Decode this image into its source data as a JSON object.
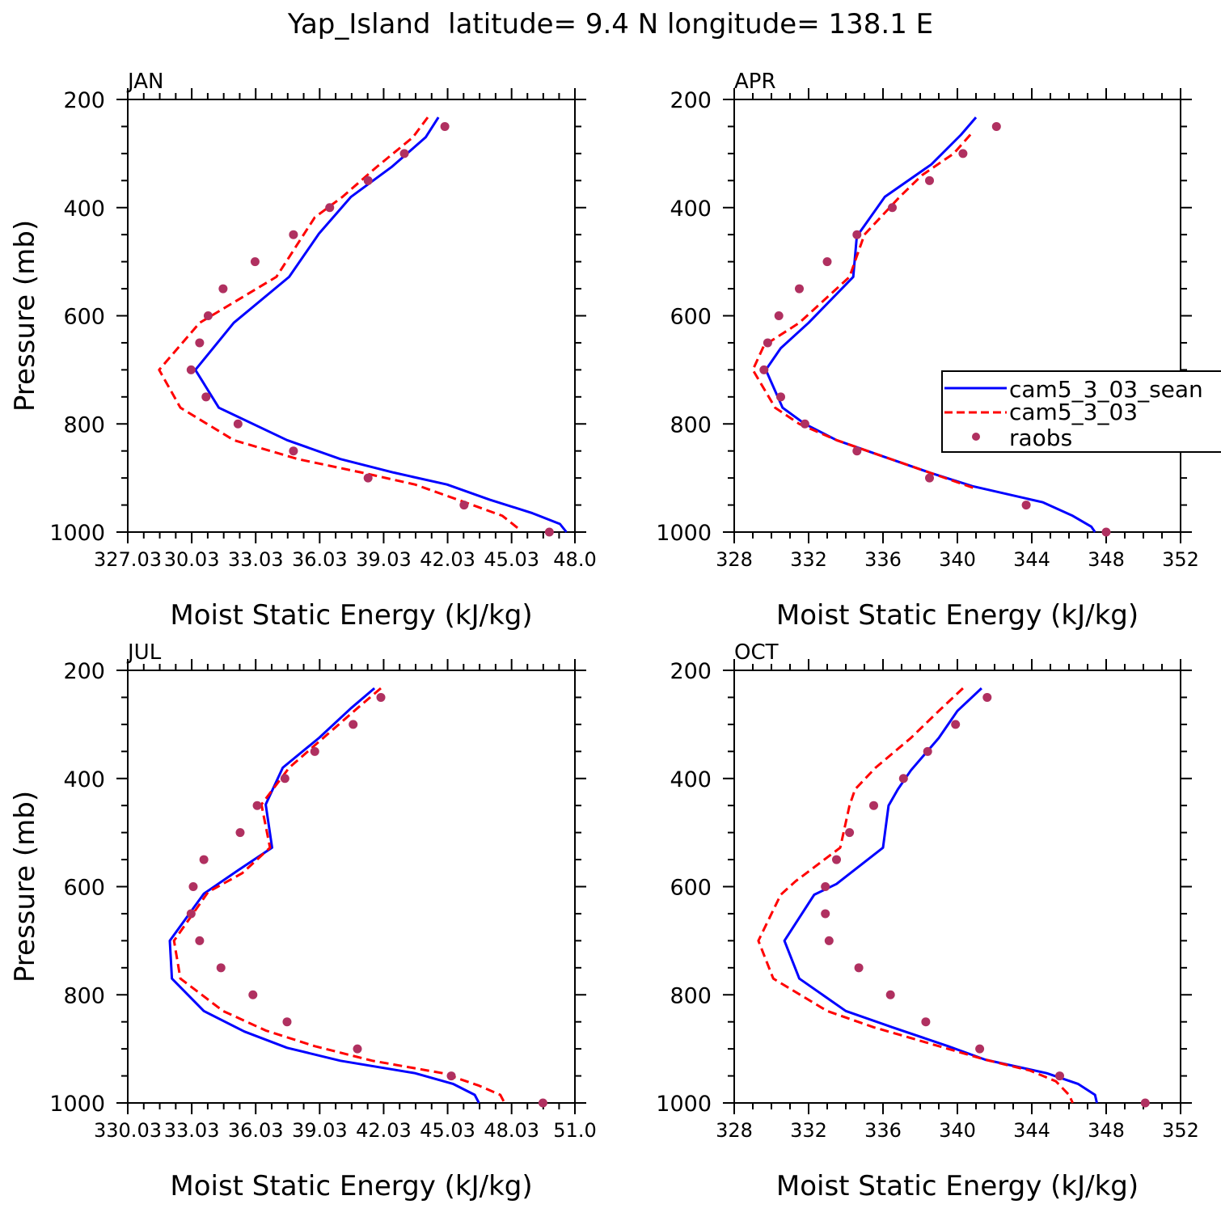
{
  "title": "Yap_Island  latitude= 9.4 N longitude= 138.1 E",
  "legend": {
    "entries": [
      "cam5_3_03_sean",
      "cam5_3_03",
      "raobs"
    ],
    "placement": "right (clipped at figure edge), APR panel"
  },
  "colors": {
    "cam5_3_03_sean": "#0000ff",
    "cam5_3_03": "#ff0000",
    "raobs": "#b03060"
  },
  "chart_data": [
    {
      "type": "line",
      "panel": "JAN",
      "xlabel": "Moist Static Energy (kJ/kg)",
      "ylabel": "Pressure (mb)",
      "xlim": [
        327.03,
        348.0
      ],
      "ylim": [
        1000,
        200
      ],
      "x_tick_labels": [
        "327.03",
        "30.03",
        "33.03",
        "36.03",
        "39.03",
        "42.03",
        "45.03",
        "48.0"
      ],
      "x_ticks": [
        327.03,
        330.03,
        333.03,
        336.03,
        339.03,
        342.03,
        345.03,
        348.0
      ],
      "y_ticks": [
        200,
        400,
        600,
        800,
        1000
      ],
      "series": [
        {
          "name": "cam5_3_03_sean",
          "style": "solid",
          "x": [
            341.6,
            341.0,
            339.4,
            337.5,
            336.0,
            334.6,
            332.0,
            330.2,
            331.3,
            334.5,
            337.0,
            339.5,
            342.0,
            344.0,
            346.0,
            347.3,
            347.6
          ],
          "y": [
            233,
            270,
            325,
            380,
            448,
            528,
            613,
            700,
            770,
            830,
            865,
            890,
            912,
            940,
            965,
            985,
            1000
          ]
        },
        {
          "name": "cam5_3_03",
          "style": "dashed",
          "x": [
            341.1,
            340.4,
            338.7,
            337.1,
            335.8,
            334.0,
            330.4,
            328.5,
            329.5,
            332.0,
            335.0,
            338.0,
            340.5,
            342.5,
            344.6,
            345.4
          ],
          "y": [
            233,
            270,
            325,
            380,
            418,
            528,
            613,
            700,
            770,
            830,
            865,
            890,
            912,
            940,
            970,
            995
          ]
        },
        {
          "name": "raobs",
          "style": "markers",
          "x": [
            341.9,
            340.0,
            338.3,
            336.5,
            334.8,
            333.0,
            331.5,
            330.8,
            330.4,
            330.0,
            330.7,
            332.2,
            334.8,
            338.3,
            342.8,
            346.8
          ],
          "y": [
            250,
            300,
            350,
            400,
            450,
            500,
            550,
            600,
            650,
            700,
            750,
            800,
            850,
            900,
            950,
            1000
          ]
        }
      ]
    },
    {
      "type": "line",
      "panel": "APR",
      "xlabel": "Moist Static Energy (kJ/kg)",
      "ylabel": "",
      "xlim": [
        328,
        352
      ],
      "ylim": [
        1000,
        200
      ],
      "x_tick_labels": [
        "328",
        "332",
        "336",
        "340",
        "344",
        "348",
        "352"
      ],
      "x_ticks": [
        328,
        332,
        336,
        340,
        344,
        348,
        352
      ],
      "y_ticks": [
        200,
        400,
        600,
        800,
        1000
      ],
      "series": [
        {
          "name": "cam5_3_03_sean",
          "style": "solid",
          "x": [
            341.0,
            340.2,
            338.6,
            336.1,
            334.7,
            334.6,
            334.4,
            332.0,
            330.5,
            329.7,
            330.6,
            331.8,
            333.5,
            336.0,
            338.5,
            340.8,
            344.6,
            346.2,
            347.2,
            347.4
          ],
          "y": [
            233,
            265,
            320,
            380,
            448,
            450,
            528,
            613,
            660,
            700,
            770,
            800,
            830,
            860,
            890,
            915,
            945,
            970,
            990,
            1000
          ]
        },
        {
          "name": "cam5_3_03",
          "style": "dashed",
          "x": [
            340.7,
            339.8,
            338.1,
            336.9,
            335.0,
            334.2,
            331.5,
            329.6,
            329.0,
            330.2,
            331.5,
            333.5,
            336.0,
            338.5,
            341.0
          ],
          "y": [
            265,
            300,
            340,
            380,
            450,
            528,
            613,
            655,
            700,
            770,
            800,
            830,
            860,
            890,
            920
          ]
        },
        {
          "name": "raobs",
          "style": "markers",
          "x": [
            342.1,
            340.3,
            338.5,
            336.5,
            334.6,
            333.0,
            331.5,
            330.4,
            329.8,
            329.6,
            330.5,
            331.8,
            334.6,
            338.5,
            343.7,
            348.0
          ],
          "y": [
            250,
            300,
            350,
            400,
            450,
            500,
            550,
            600,
            650,
            700,
            750,
            800,
            850,
            900,
            950,
            1000
          ]
        }
      ]
    },
    {
      "type": "line",
      "panel": "JUL",
      "xlabel": "Moist Static Energy (kJ/kg)",
      "ylabel": "Pressure (mb)",
      "xlim": [
        330.03,
        351.0
      ],
      "ylim": [
        1000,
        200
      ],
      "x_tick_labels": [
        "330.03",
        "33.03",
        "36.03",
        "39.03",
        "42.03",
        "45.03",
        "48.03",
        "51.0"
      ],
      "x_ticks": [
        330.03,
        333.03,
        336.03,
        339.03,
        342.03,
        345.03,
        348.03,
        351.0
      ],
      "y_ticks": [
        200,
        400,
        600,
        800,
        1000
      ],
      "series": [
        {
          "name": "cam5_3_03_sean",
          "style": "solid",
          "x": [
            341.6,
            340.5,
            339.0,
            337.3,
            336.5,
            336.8,
            335.2,
            333.6,
            332.0,
            332.1,
            333.6,
            335.5,
            337.5,
            340.0,
            343.5,
            345.3,
            346.3,
            346.5
          ],
          "y": [
            233,
            270,
            325,
            380,
            448,
            528,
            570,
            613,
            700,
            770,
            830,
            868,
            898,
            922,
            945,
            965,
            985,
            1000
          ]
        },
        {
          "name": "cam5_3_03",
          "style": "dashed",
          "x": [
            341.9,
            340.8,
            339.2,
            337.6,
            336.3,
            336.7,
            335.4,
            333.8,
            332.2,
            332.5,
            334.5,
            336.5,
            338.8,
            341.5,
            344.8,
            346.5,
            347.5,
            347.7
          ],
          "y": [
            233,
            270,
            325,
            380,
            448,
            528,
            575,
            610,
            700,
            770,
            830,
            866,
            895,
            922,
            945,
            968,
            985,
            1000
          ]
        },
        {
          "name": "raobs",
          "style": "markers",
          "x": [
            341.9,
            340.6,
            338.8,
            337.4,
            336.1,
            335.3,
            333.6,
            333.1,
            333.0,
            333.4,
            334.4,
            335.9,
            337.5,
            340.8,
            345.2,
            349.5
          ],
          "y": [
            250,
            300,
            350,
            400,
            450,
            500,
            550,
            600,
            650,
            700,
            750,
            800,
            850,
            900,
            950,
            1000
          ]
        }
      ]
    },
    {
      "type": "line",
      "panel": "OCT",
      "xlabel": "Moist Static Energy (kJ/kg)",
      "ylabel": "",
      "xlim": [
        328,
        352
      ],
      "ylim": [
        1000,
        200
      ],
      "x_tick_labels": [
        "328",
        "332",
        "336",
        "340",
        "344",
        "348",
        "352"
      ],
      "x_ticks": [
        328,
        332,
        336,
        340,
        344,
        348,
        352
      ],
      "y_ticks": [
        200,
        400,
        600,
        800,
        1000
      ],
      "series": [
        {
          "name": "cam5_3_03_sean",
          "style": "solid",
          "x": [
            341.3,
            340.0,
            339.0,
            337.5,
            336.8,
            336.3,
            336.0,
            333.5,
            332.3,
            330.7,
            331.5,
            334.0,
            336.5,
            339.5,
            341.5,
            344.8,
            346.5,
            347.4,
            347.5
          ],
          "y": [
            233,
            275,
            325,
            385,
            420,
            450,
            528,
            595,
            615,
            700,
            770,
            830,
            860,
            895,
            920,
            945,
            965,
            985,
            1000
          ]
        },
        {
          "name": "cam5_3_03",
          "style": "dashed",
          "x": [
            340.3,
            339.0,
            337.5,
            335.6,
            334.5,
            334.2,
            333.7,
            331.3,
            330.5,
            329.3,
            330.1,
            333.0,
            335.5,
            338.5,
            341.5,
            343.9,
            345.3,
            346.0,
            346.2
          ],
          "y": [
            233,
            275,
            325,
            380,
            420,
            450,
            528,
            590,
            615,
            700,
            770,
            830,
            860,
            890,
            920,
            940,
            960,
            985,
            1000
          ]
        },
        {
          "name": "raobs",
          "style": "markers",
          "x": [
            341.6,
            339.9,
            338.4,
            337.1,
            335.5,
            334.2,
            333.5,
            332.9,
            332.9,
            333.1,
            334.7,
            336.4,
            338.3,
            341.2,
            345.5,
            350.1
          ],
          "y": [
            250,
            300,
            350,
            400,
            450,
            500,
            550,
            600,
            650,
            700,
            750,
            800,
            850,
            900,
            950,
            1000
          ]
        }
      ]
    }
  ]
}
